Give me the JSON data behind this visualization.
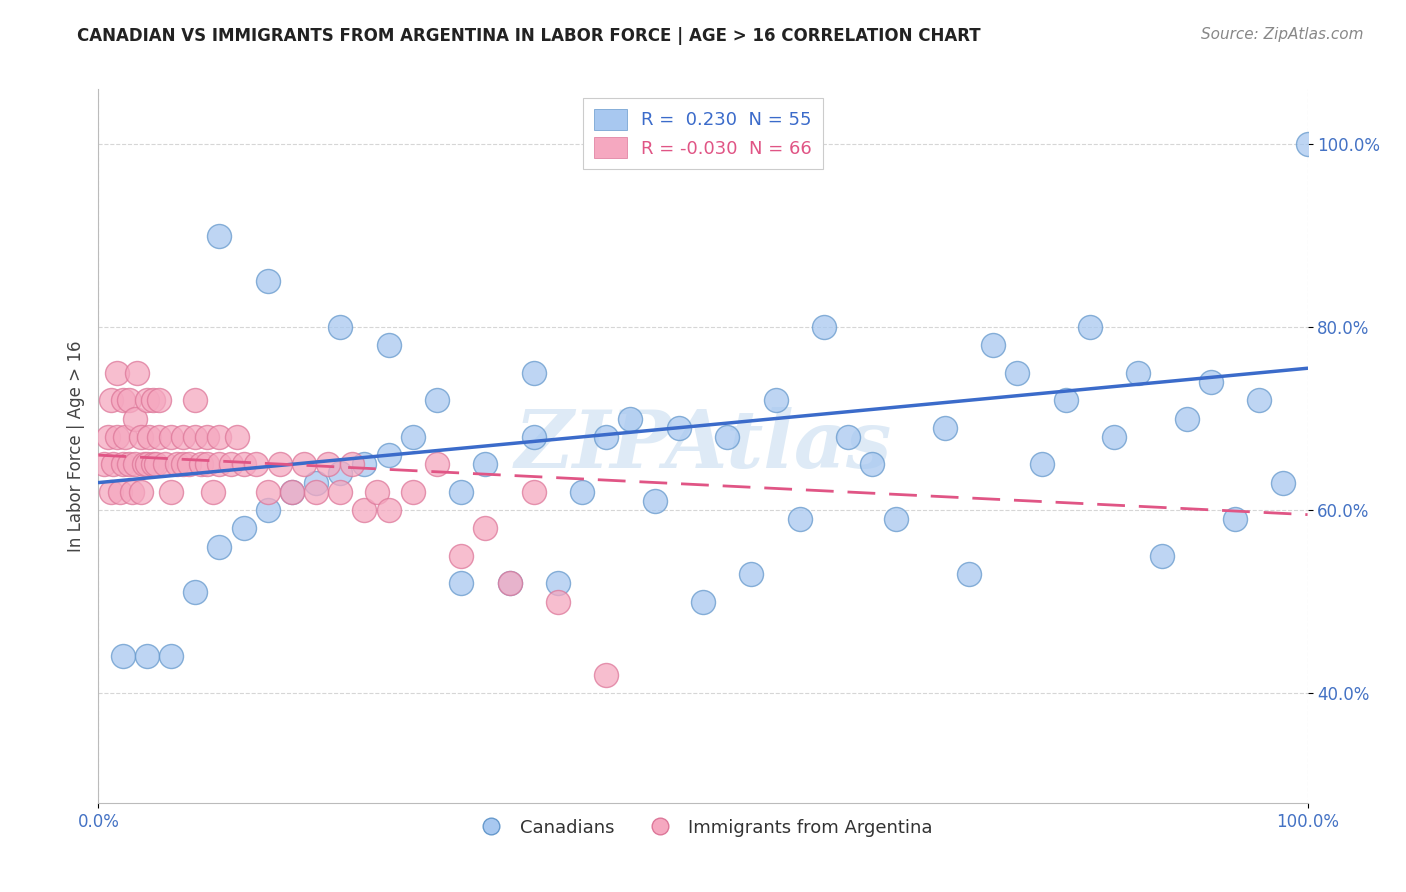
{
  "title": "CANADIAN VS IMMIGRANTS FROM ARGENTINA IN LABOR FORCE | AGE > 16 CORRELATION CHART",
  "source": "Source: ZipAtlas.com",
  "ylabel": "In Labor Force | Age > 16",
  "xlim": [
    0.0,
    1.0
  ],
  "ylim": [
    0.28,
    1.06
  ],
  "yticks": [
    0.4,
    0.6,
    0.8,
    1.0
  ],
  "ytick_labels": [
    "40.0%",
    "60.0%",
    "80.0%",
    "100.0%"
  ],
  "xticks": [
    0.0,
    1.0
  ],
  "xtick_labels": [
    "0.0%",
    "100.0%"
  ],
  "legend_R_canadian": " 0.230",
  "legend_N_canadian": "55",
  "legend_R_argentina": "-0.030",
  "legend_N_argentina": "66",
  "canadian_color": "#a8c8f0",
  "canadian_edge": "#6699cc",
  "argentina_color": "#f5a8c0",
  "argentina_edge": "#dd7799",
  "canadian_line_color": "#3b6bca",
  "argentina_line_color": "#e05585",
  "watermark_color": "#c8ddf0",
  "canadian_x": [
    0.02,
    0.04,
    0.06,
    0.08,
    0.1,
    0.12,
    0.14,
    0.16,
    0.18,
    0.2,
    0.22,
    0.24,
    0.26,
    0.28,
    0.3,
    0.32,
    0.34,
    0.36,
    0.38,
    0.4,
    0.42,
    0.44,
    0.46,
    0.48,
    0.5,
    0.52,
    0.54,
    0.56,
    0.58,
    0.6,
    0.62,
    0.64,
    0.66,
    0.7,
    0.72,
    0.74,
    0.76,
    0.78,
    0.8,
    0.82,
    0.84,
    0.86,
    0.88,
    0.9,
    0.92,
    0.94,
    0.96,
    0.98,
    1.0,
    0.1,
    0.14,
    0.2,
    0.24,
    0.3,
    0.36
  ],
  "canadian_y": [
    0.44,
    0.44,
    0.44,
    0.51,
    0.56,
    0.58,
    0.6,
    0.62,
    0.63,
    0.64,
    0.65,
    0.66,
    0.68,
    0.72,
    0.62,
    0.65,
    0.52,
    0.68,
    0.52,
    0.62,
    0.68,
    0.7,
    0.61,
    0.69,
    0.5,
    0.68,
    0.53,
    0.72,
    0.59,
    0.8,
    0.68,
    0.65,
    0.59,
    0.69,
    0.53,
    0.78,
    0.75,
    0.65,
    0.72,
    0.8,
    0.68,
    0.75,
    0.55,
    0.7,
    0.74,
    0.59,
    0.72,
    0.63,
    1.0,
    0.9,
    0.85,
    0.8,
    0.78,
    0.52,
    0.75
  ],
  "argentina_x": [
    0.005,
    0.008,
    0.01,
    0.01,
    0.012,
    0.015,
    0.015,
    0.018,
    0.02,
    0.02,
    0.022,
    0.025,
    0.025,
    0.028,
    0.03,
    0.03,
    0.032,
    0.035,
    0.035,
    0.038,
    0.04,
    0.04,
    0.042,
    0.045,
    0.045,
    0.048,
    0.05,
    0.05,
    0.055,
    0.06,
    0.06,
    0.065,
    0.07,
    0.07,
    0.075,
    0.08,
    0.08,
    0.085,
    0.09,
    0.09,
    0.095,
    0.1,
    0.1,
    0.11,
    0.115,
    0.12,
    0.13,
    0.14,
    0.15,
    0.16,
    0.17,
    0.18,
    0.19,
    0.2,
    0.21,
    0.22,
    0.23,
    0.24,
    0.26,
    0.28,
    0.3,
    0.32,
    0.34,
    0.36,
    0.38,
    0.42
  ],
  "argentina_y": [
    0.65,
    0.68,
    0.62,
    0.72,
    0.65,
    0.68,
    0.75,
    0.62,
    0.65,
    0.72,
    0.68,
    0.65,
    0.72,
    0.62,
    0.65,
    0.7,
    0.75,
    0.68,
    0.62,
    0.65,
    0.72,
    0.65,
    0.68,
    0.65,
    0.72,
    0.65,
    0.68,
    0.72,
    0.65,
    0.68,
    0.62,
    0.65,
    0.65,
    0.68,
    0.65,
    0.68,
    0.72,
    0.65,
    0.65,
    0.68,
    0.62,
    0.65,
    0.68,
    0.65,
    0.68,
    0.65,
    0.65,
    0.62,
    0.65,
    0.62,
    0.65,
    0.62,
    0.65,
    0.62,
    0.65,
    0.6,
    0.62,
    0.6,
    0.62,
    0.65,
    0.55,
    0.58,
    0.52,
    0.62,
    0.5,
    0.42
  ],
  "canada_trend_x0": 0.0,
  "canada_trend_y0": 0.63,
  "canada_trend_x1": 1.0,
  "canada_trend_y1": 0.755,
  "arg_trend_x0": 0.0,
  "arg_trend_y0": 0.66,
  "arg_trend_x1": 1.0,
  "arg_trend_y1": 0.595
}
